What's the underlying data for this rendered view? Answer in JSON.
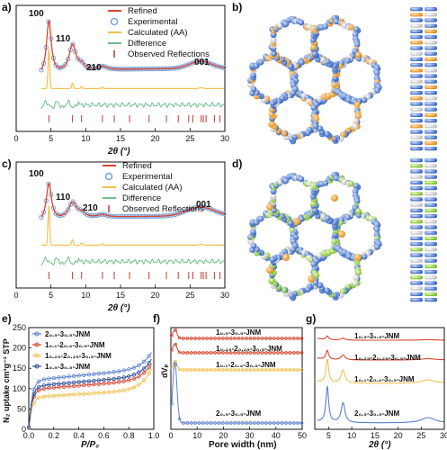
{
  "colors": {
    "refined": "#d9452f",
    "experimental": "#7aa2d8",
    "calculated": "#f2c14e",
    "difference": "#6fbf8e",
    "reflections": "#c0392b",
    "blue_series": "#5b7fd1",
    "orange_series": "#f0a030",
    "red_series": "#d9452f",
    "dark_series": "#2b4e9a"
  },
  "panels": {
    "a": "a)",
    "b": "b)",
    "c": "c)",
    "d": "d)",
    "e": "e)",
    "f": "f)",
    "g": "g)"
  },
  "chart_data": [
    {
      "id": "a",
      "type": "line",
      "xlabel": "2θ (°)",
      "xlim": [
        0,
        30
      ],
      "xticks": [
        "0",
        "5",
        "10",
        "15",
        "20",
        "25",
        "30"
      ],
      "legend": [
        "Refined",
        "Experimental",
        "Calculated (AA)",
        "Difference",
        "Observed Reflections"
      ],
      "annotations": [
        "100",
        "110",
        "210",
        "001"
      ],
      "reflections": [
        4.7,
        8.1,
        9.4,
        12.4,
        14.1,
        16.3,
        19.1,
        21.6,
        23.3,
        24.8,
        25.4,
        26.6,
        26.9,
        27.3,
        28.5,
        29.3
      ]
    },
    {
      "id": "c",
      "type": "line",
      "xlabel": "2θ (°)",
      "xlim": [
        0,
        30
      ],
      "xticks": [
        "0",
        "5",
        "10",
        "15",
        "20",
        "25",
        "30"
      ],
      "legend": [
        "Refined",
        "Experimental",
        "Calculated (AA)",
        "Difference",
        "Observed Reflections"
      ],
      "annotations": [
        "100",
        "110",
        "210",
        "001"
      ],
      "reflections": [
        4.7,
        8.1,
        9.4,
        12.4,
        14.1,
        16.3,
        19.1,
        21.6,
        23.3,
        24.8,
        25.4,
        26.6,
        26.9,
        27.3,
        28.5,
        29.3
      ]
    },
    {
      "id": "e",
      "type": "line",
      "xlabel": "P/P₀",
      "ylabel": "N₂ uptake cm³g⁻¹ STP",
      "xlim": [
        0,
        1
      ],
      "ylim": [
        0,
        250
      ],
      "xticks": [
        "0.0",
        "0.2",
        "0.4",
        "0.6",
        "0.8",
        "1.0"
      ],
      "yticks": [
        "0",
        "50",
        "100",
        "150",
        "200",
        "250"
      ],
      "series": [
        {
          "name": "2₀.₅-3₀.₅-JNM",
          "plateau": 150,
          "end": 230
        },
        {
          "name": "1₀.₁-2₀.₄-3₀.₅-JNM",
          "plateau": 122,
          "end": 196
        },
        {
          "name": "1₀.₂₅-2₀.₂₅-3₀.₅-JNM",
          "plateau": 98,
          "end": 182
        },
        {
          "name": "1₀.₅-3₀.₅-JNM",
          "plateau": 132,
          "end": 210
        }
      ]
    },
    {
      "id": "f",
      "type": "line",
      "xlabel": "Pore width (nm)",
      "ylabel": "dVₚ",
      "xlim": [
        0,
        50
      ],
      "xticks": [
        "0",
        "10",
        "20",
        "30",
        "40",
        "50"
      ],
      "series": [
        {
          "name": "1₀.₅-3₀.₅-JNM"
        },
        {
          "name": "1₀.₂₅-2₀.₂₅-3₀.₅-JNM"
        },
        {
          "name": "1₀.₁-2₀.₄-3₀.₅-JNM"
        },
        {
          "name": "2₀.₅-3₀.₅-JNM"
        }
      ]
    },
    {
      "id": "g",
      "type": "line",
      "xlabel": "2θ (°)",
      "xlim": [
        2,
        30
      ],
      "xticks": [
        "5",
        "10",
        "15",
        "20",
        "25",
        "30"
      ],
      "series": [
        {
          "name": "1₀.₅-3₀.₅-JNM"
        },
        {
          "name": "1₀.₂₅-2₀.₂₅-3₀.₅-JNM"
        },
        {
          "name": "1₀.₁-2₀.₄-3₀.₅-JNM"
        },
        {
          "name": "2₀.₅-3₀.₅-JNM"
        }
      ]
    }
  ]
}
